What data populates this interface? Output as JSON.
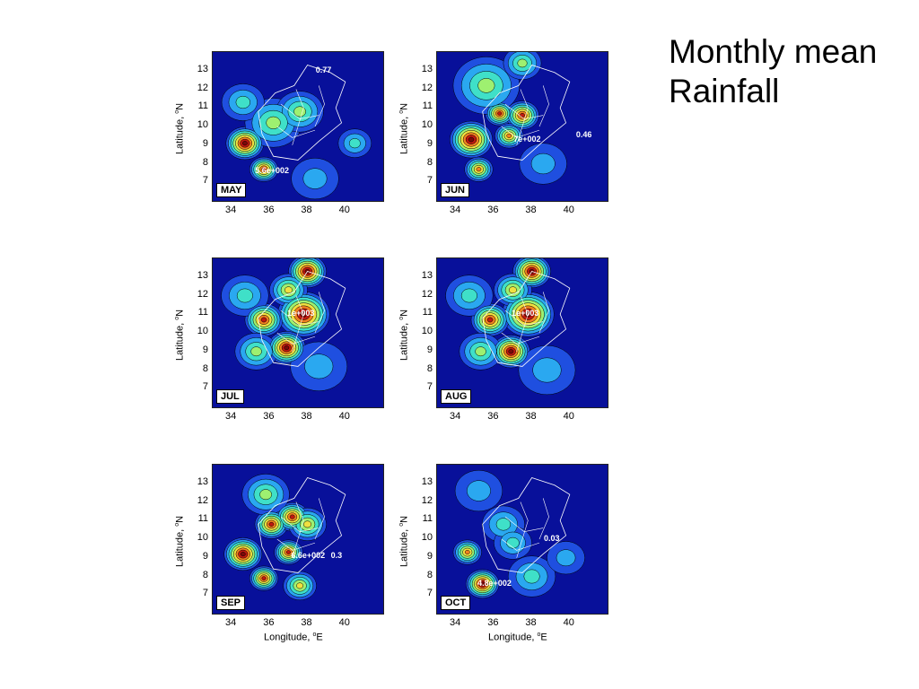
{
  "title": {
    "line1": "Monthly mean",
    "line2": "Rainfall"
  },
  "axes": {
    "ylabel_prefix": "Latitude, ",
    "ylabel_unit": "N",
    "xlabel_prefix": "Longitude, ",
    "xlabel_unit": "E",
    "degree_symbol": "o"
  },
  "chart_data": [
    {
      "type": "heatmap",
      "panel": "MAY",
      "x_ticks": [
        "34",
        "36",
        "38",
        "40"
      ],
      "y_ticks": [
        "13",
        "12",
        "11",
        "10",
        "9",
        "8",
        "7"
      ],
      "xlim": [
        33,
        42
      ],
      "ylim": [
        6,
        14
      ],
      "annotations": [
        {
          "text": "0.77",
          "lon": 39.1,
          "lat": 13.0
        },
        {
          "text": "5.6e+002",
          "lon": 35.9,
          "lat": 7.6
        }
      ]
    },
    {
      "type": "heatmap",
      "panel": "JUN",
      "x_ticks": [
        "34",
        "36",
        "38",
        "40"
      ],
      "y_ticks": [
        "13",
        "12",
        "11",
        "10",
        "9",
        "8",
        "7"
      ],
      "xlim": [
        33,
        42
      ],
      "ylim": [
        6,
        14
      ],
      "annotations": [
        {
          "text": "7e+002",
          "lon": 37.7,
          "lat": 9.3
        },
        {
          "text": "0.46",
          "lon": 41.0,
          "lat": 9.5
        }
      ]
    },
    {
      "type": "heatmap",
      "panel": "JUL",
      "x_ticks": [
        "34",
        "36",
        "38",
        "40"
      ],
      "y_ticks": [
        "13",
        "12",
        "11",
        "10",
        "9",
        "8",
        "7"
      ],
      "xlim": [
        33,
        42
      ],
      "ylim": [
        6,
        14
      ],
      "annotations": [
        {
          "text": "1e+003",
          "lon": 37.6,
          "lat": 11.0
        }
      ]
    },
    {
      "type": "heatmap",
      "panel": "AUG",
      "x_ticks": [
        "34",
        "36",
        "38",
        "40"
      ],
      "y_ticks": [
        "13",
        "12",
        "11",
        "10",
        "9",
        "8",
        "7"
      ],
      "xlim": [
        33,
        42
      ],
      "ylim": [
        6,
        14
      ],
      "annotations": [
        {
          "text": "1e+003",
          "lon": 37.6,
          "lat": 11.0
        }
      ]
    },
    {
      "type": "heatmap",
      "panel": "SEP",
      "x_ticks": [
        "34",
        "36",
        "38",
        "40"
      ],
      "y_ticks": [
        "13",
        "12",
        "11",
        "10",
        "9",
        "8",
        "7"
      ],
      "xlim": [
        33,
        42
      ],
      "ylim": [
        6,
        14
      ],
      "annotations": [
        {
          "text": "6.6e+002",
          "lon": 37.8,
          "lat": 9.1
        },
        {
          "text": "0.3",
          "lon": 39.9,
          "lat": 9.1
        }
      ]
    },
    {
      "type": "heatmap",
      "panel": "OCT",
      "x_ticks": [
        "34",
        "36",
        "38",
        "40"
      ],
      "y_ticks": [
        "13",
        "12",
        "11",
        "10",
        "9",
        "8",
        "7"
      ],
      "xlim": [
        33,
        42
      ],
      "ylim": [
        6,
        14
      ],
      "annotations": [
        {
          "text": "0.03",
          "lon": 39.3,
          "lat": 10.0
        },
        {
          "text": "4.8e+002",
          "lon": 35.8,
          "lat": 7.6
        }
      ]
    }
  ],
  "colors": {
    "background_field": "#08109a",
    "colormap": [
      "#08109a",
      "#1f4fe0",
      "#2aa8f0",
      "#3fe0c8",
      "#9ef070",
      "#f0e040",
      "#f08020",
      "#c01810",
      "#7a0a0a"
    ]
  }
}
